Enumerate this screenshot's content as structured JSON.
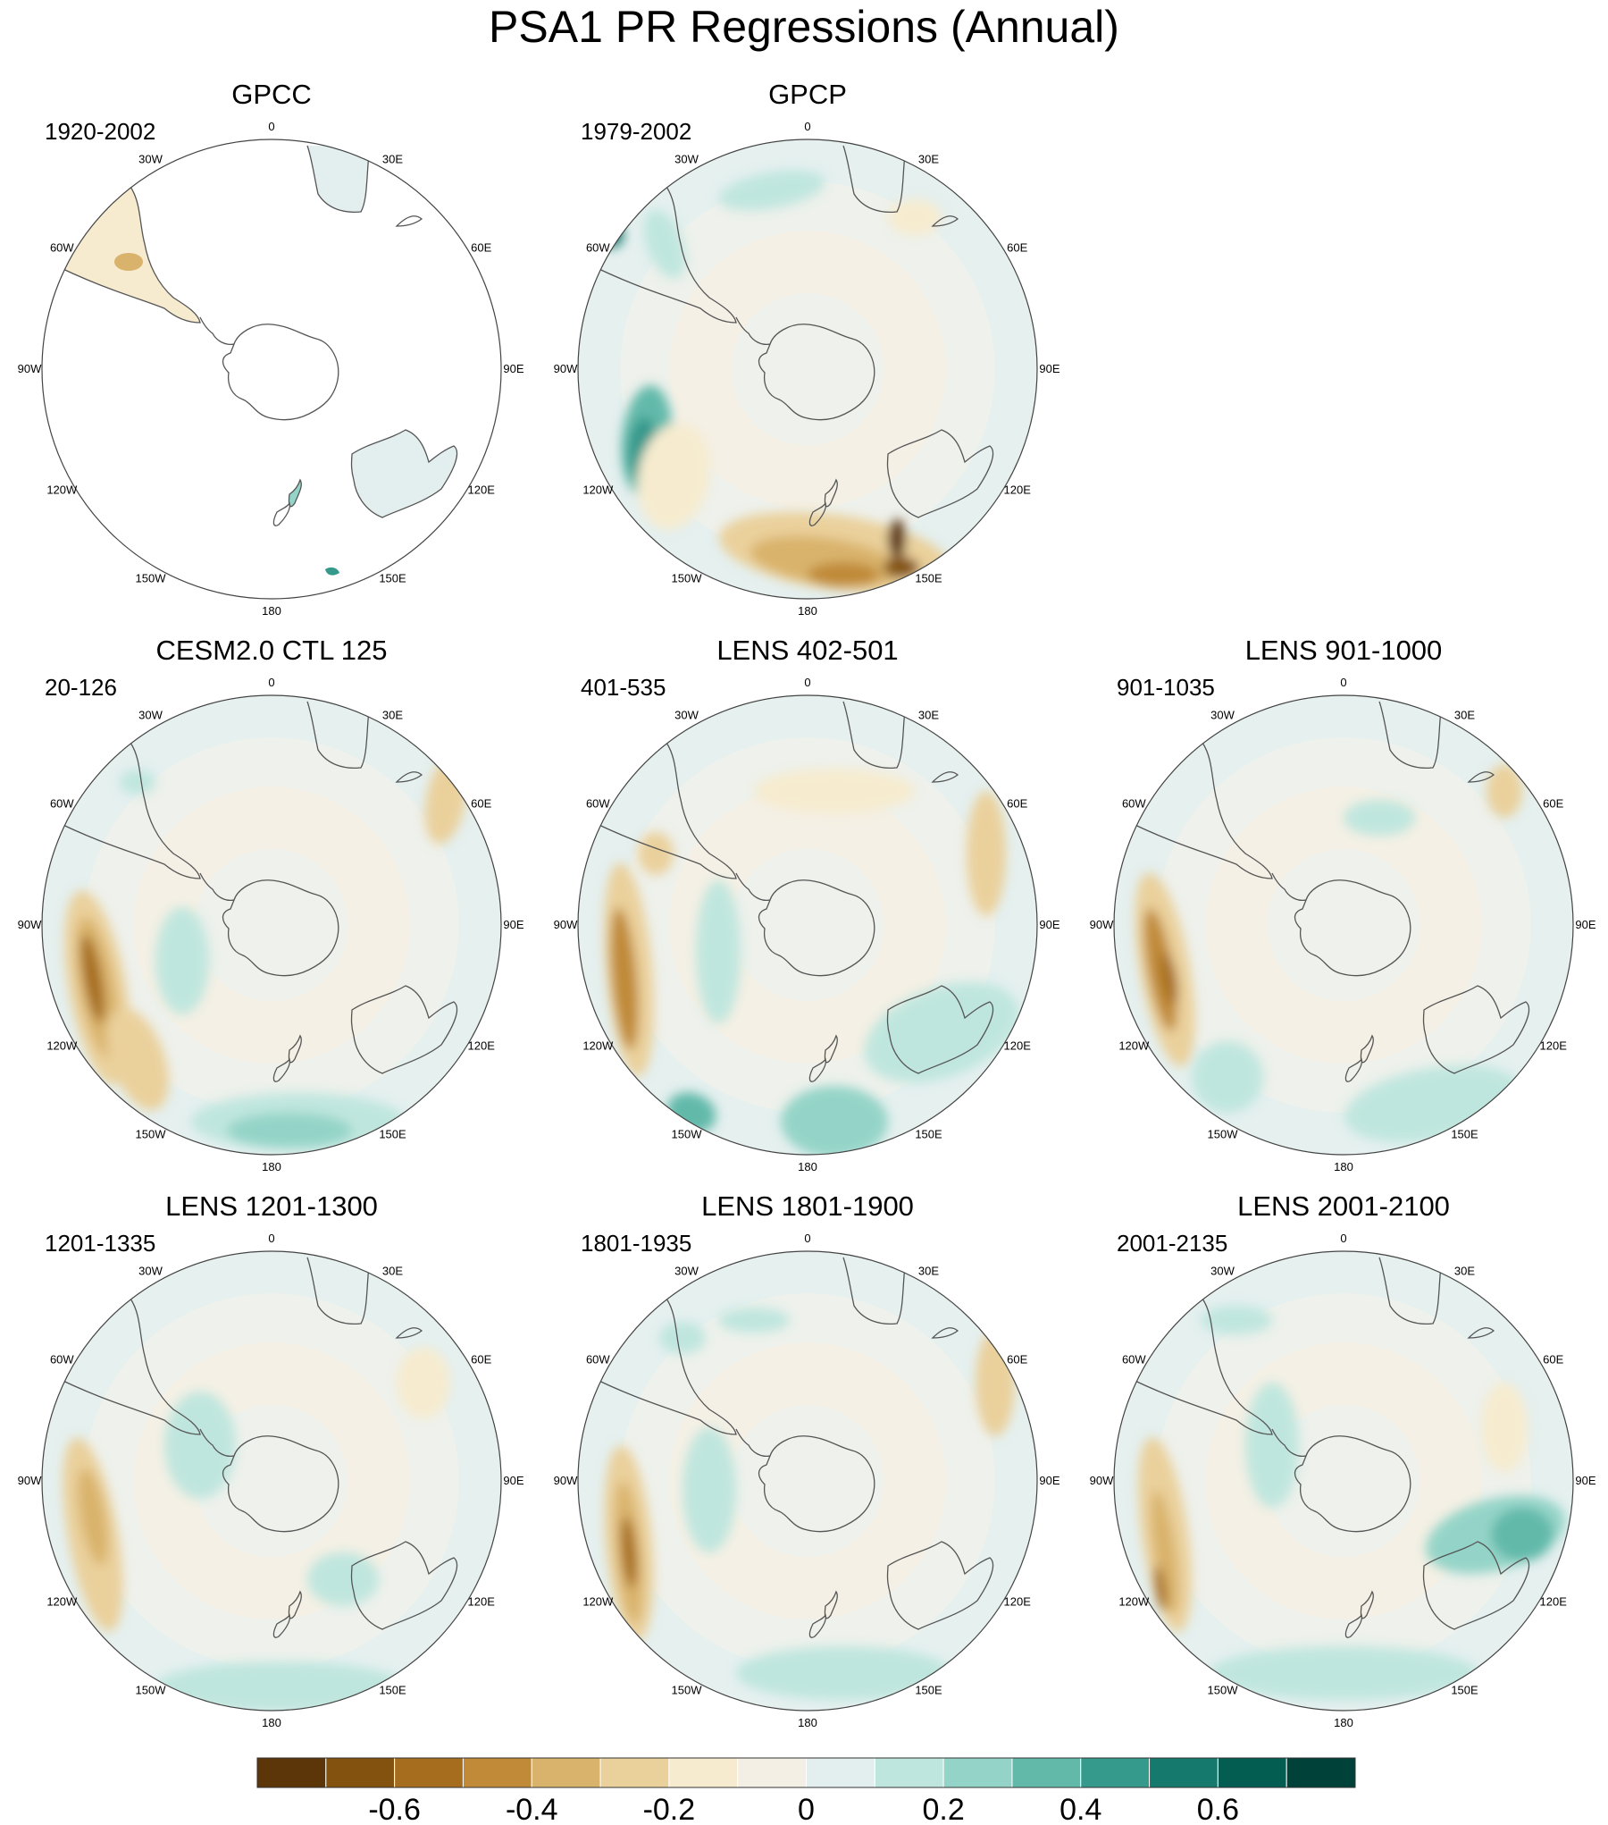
{
  "figure": {
    "title": "PSA1 PR Regressions (Annual)"
  },
  "lon_labels": [
    "0",
    "30E",
    "60E",
    "90E",
    "120E",
    "150E",
    "180",
    "150W",
    "120W",
    "90W",
    "60W",
    "30W"
  ],
  "panels": [
    {
      "title": "GPCC",
      "period": "1920-2002",
      "coverage": "land-only"
    },
    {
      "title": "GPCP",
      "period": "1979-2002",
      "coverage": "full"
    },
    {
      "title": "CESM2.0 CTL 125",
      "period": "20-126",
      "coverage": "full"
    },
    {
      "title": "LENS 402-501",
      "period": "401-535",
      "coverage": "full"
    },
    {
      "title": "LENS 901-1000",
      "period": "901-1035",
      "coverage": "full"
    },
    {
      "title": "LENS 1201-1300",
      "period": "1201-1335",
      "coverage": "full"
    },
    {
      "title": "LENS 1801-1900",
      "period": "1801-1935",
      "coverage": "full"
    },
    {
      "title": "LENS 2001-2100",
      "period": "2001-2135",
      "coverage": "full"
    }
  ],
  "colorbar": {
    "colors": [
      "#5c3608",
      "#84520f",
      "#a66d1f",
      "#c08a38",
      "#d9b36c",
      "#ead09b",
      "#f6ebcf",
      "#f3efe5",
      "#e3efef",
      "#bfe6de",
      "#94d4c8",
      "#62b9aa",
      "#35998b",
      "#157a6d",
      "#035d50",
      "#00423a"
    ],
    "tick_labels": [
      "-0.6",
      "-0.4",
      "-0.2",
      "0",
      "0.2",
      "0.4",
      "0.6"
    ]
  }
}
